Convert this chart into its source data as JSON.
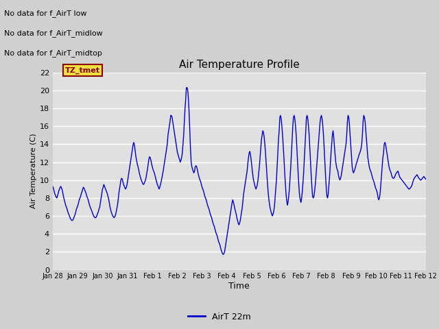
{
  "title": "Air Temperature Profile",
  "xlabel": "Time",
  "ylabel": "Air Temperature (C)",
  "ylim": [
    0,
    22
  ],
  "yticks": [
    0,
    2,
    4,
    6,
    8,
    10,
    12,
    14,
    16,
    18,
    20,
    22
  ],
  "legend_label": "AirT 22m",
  "line_color": "#0000CC",
  "fig_facecolor": "#d8d8d8",
  "plot_facecolor": "#e8e8e8",
  "annotations": [
    "No data for f_AirT low",
    "No data for f_AirT_midlow",
    "No data for f_AirT_midtop"
  ],
  "tz_label": "TZ_tmet",
  "x_tick_labels": [
    "Jan 28",
    "Jan 29",
    "Jan 30",
    "Jan 31",
    "Feb 1",
    "Feb 2",
    "Feb 3",
    "Feb 4",
    "Feb 5",
    "Feb 6",
    "Feb 7",
    "Feb 8",
    "Feb 9",
    "Feb 10",
    "Feb 11",
    "Feb 12"
  ],
  "temperature_data": [
    9.3,
    9.1,
    8.8,
    8.5,
    8.3,
    8.1,
    8.0,
    8.2,
    8.5,
    8.8,
    9.0,
    9.2,
    9.3,
    9.1,
    8.9,
    8.5,
    8.1,
    7.8,
    7.5,
    7.2,
    7.0,
    6.8,
    6.5,
    6.3,
    6.1,
    5.9,
    5.7,
    5.6,
    5.5,
    5.5,
    5.6,
    5.8,
    6.0,
    6.2,
    6.5,
    6.8,
    7.0,
    7.2,
    7.5,
    7.8,
    8.0,
    8.2,
    8.5,
    8.7,
    9.0,
    9.2,
    9.1,
    8.9,
    8.7,
    8.5,
    8.2,
    8.0,
    7.8,
    7.5,
    7.2,
    7.0,
    6.8,
    6.6,
    6.4,
    6.2,
    6.0,
    5.9,
    5.8,
    5.8,
    5.9,
    6.1,
    6.3,
    6.5,
    6.8,
    7.0,
    7.5,
    8.0,
    8.5,
    9.0,
    9.2,
    9.5,
    9.3,
    9.1,
    8.9,
    8.7,
    8.5,
    8.2,
    7.9,
    7.5,
    7.0,
    6.7,
    6.4,
    6.2,
    6.0,
    5.9,
    5.8,
    5.9,
    6.1,
    6.4,
    6.8,
    7.2,
    7.8,
    8.5,
    9.0,
    9.5,
    10.0,
    10.2,
    10.1,
    9.8,
    9.5,
    9.3,
    9.1,
    9.0,
    9.2,
    9.5,
    10.0,
    10.5,
    11.0,
    11.5,
    12.0,
    12.5,
    13.0,
    13.5,
    14.0,
    14.2,
    13.8,
    13.2,
    12.6,
    12.2,
    11.8,
    11.5,
    11.2,
    10.8,
    10.5,
    10.2,
    10.0,
    9.8,
    9.6,
    9.5,
    9.6,
    9.8,
    10.0,
    10.3,
    10.8,
    11.2,
    11.8,
    12.3,
    12.6,
    12.5,
    12.2,
    11.8,
    11.5,
    11.2,
    11.0,
    10.8,
    10.5,
    10.2,
    9.9,
    9.6,
    9.4,
    9.2,
    9.0,
    9.2,
    9.5,
    9.8,
    10.2,
    10.6,
    11.0,
    11.5,
    12.0,
    12.5,
    13.0,
    13.5,
    14.0,
    15.0,
    15.5,
    16.0,
    16.5,
    17.2,
    17.2,
    17.0,
    16.5,
    16.0,
    15.5,
    15.0,
    14.5,
    14.0,
    13.5,
    13.0,
    12.8,
    12.5,
    12.3,
    12.0,
    12.2,
    12.5,
    13.0,
    14.0,
    15.0,
    16.5,
    18.0,
    19.0,
    20.3,
    20.3,
    20.0,
    19.0,
    17.5,
    15.5,
    13.5,
    12.0,
    11.5,
    11.2,
    11.0,
    10.8,
    11.0,
    11.5,
    11.6,
    11.5,
    11.2,
    10.8,
    10.5,
    10.2,
    10.0,
    9.8,
    9.5,
    9.2,
    9.0,
    8.8,
    8.5,
    8.2,
    8.0,
    7.8,
    7.5,
    7.2,
    7.0,
    6.8,
    6.5,
    6.2,
    6.0,
    5.8,
    5.5,
    5.2,
    5.0,
    4.8,
    4.5,
    4.2,
    4.0,
    3.8,
    3.5,
    3.2,
    3.0,
    2.8,
    2.5,
    2.2,
    2.0,
    1.8,
    1.7,
    1.8,
    2.0,
    2.5,
    3.0,
    3.5,
    4.0,
    4.5,
    5.0,
    5.5,
    6.0,
    6.5,
    7.0,
    7.5,
    7.8,
    7.5,
    7.2,
    6.8,
    6.5,
    6.2,
    5.8,
    5.5,
    5.2,
    5.0,
    5.2,
    5.5,
    6.0,
    6.5,
    7.0,
    7.8,
    8.5,
    9.0,
    9.5,
    10.0,
    10.5,
    11.0,
    11.8,
    12.5,
    13.0,
    13.2,
    12.8,
    12.2,
    11.5,
    10.8,
    10.2,
    9.8,
    9.5,
    9.2,
    9.0,
    9.2,
    9.5,
    10.0,
    10.8,
    11.5,
    12.5,
    13.5,
    14.5,
    15.0,
    15.5,
    15.3,
    14.8,
    14.0,
    13.0,
    11.8,
    10.5,
    9.5,
    8.5,
    7.8,
    7.2,
    6.8,
    6.5,
    6.2,
    6.0,
    6.2,
    6.5,
    7.0,
    8.0,
    9.0,
    10.0,
    11.5,
    13.0,
    14.5,
    15.5,
    17.0,
    17.2,
    16.8,
    16.0,
    15.0,
    13.8,
    12.5,
    11.0,
    9.8,
    8.5,
    7.8,
    7.2,
    7.5,
    8.2,
    9.0,
    10.2,
    11.5,
    13.0,
    14.5,
    16.0,
    17.0,
    17.2,
    16.8,
    16.0,
    15.0,
    13.5,
    12.0,
    10.5,
    9.2,
    8.2,
    7.8,
    7.5,
    8.0,
    8.8,
    9.8,
    11.0,
    12.5,
    14.0,
    15.5,
    17.0,
    17.2,
    16.8,
    16.0,
    15.0,
    13.5,
    12.0,
    10.5,
    9.2,
    8.2,
    8.0,
    8.2,
    8.8,
    9.5,
    10.5,
    11.5,
    12.5,
    13.5,
    14.5,
    15.5,
    16.5,
    17.0,
    17.2,
    16.8,
    16.0,
    15.0,
    13.5,
    12.0,
    10.5,
    9.2,
    8.2,
    8.0,
    8.5,
    9.5,
    10.5,
    11.8,
    13.0,
    14.0,
    15.0,
    15.5,
    14.8,
    13.8,
    12.8,
    12.0,
    11.5,
    11.2,
    11.0,
    10.5,
    10.2,
    10.0,
    10.2,
    10.5,
    11.0,
    11.5,
    12.0,
    12.5,
    13.0,
    13.5,
    14.0,
    15.0,
    16.5,
    17.2,
    17.0,
    16.2,
    15.0,
    13.8,
    12.5,
    11.5,
    11.0,
    10.8,
    11.0,
    11.2,
    11.5,
    11.8,
    12.0,
    12.3,
    12.5,
    12.8,
    13.0,
    13.2,
    13.5,
    14.0,
    15.0,
    16.5,
    17.2,
    17.0,
    16.5,
    15.5,
    14.5,
    13.5,
    12.5,
    12.0,
    11.5,
    11.2,
    11.0,
    10.8,
    10.5,
    10.2,
    10.0,
    9.8,
    9.5,
    9.2,
    9.0,
    8.8,
    8.5,
    8.0,
    7.8,
    8.0,
    8.5,
    9.5,
    10.5,
    11.5,
    12.5,
    13.0,
    14.0,
    14.2,
    14.0,
    13.5,
    13.0,
    12.5,
    12.0,
    11.5,
    11.2,
    11.0,
    10.8,
    10.5,
    10.3,
    10.2,
    10.2,
    10.3,
    10.5,
    10.7,
    10.8,
    10.9,
    11.0,
    10.8,
    10.5,
    10.3,
    10.2,
    10.1,
    10.0,
    9.9,
    9.8,
    9.7,
    9.6,
    9.5,
    9.4,
    9.3,
    9.2,
    9.1,
    9.0,
    9.0,
    9.1,
    9.2,
    9.3,
    9.5,
    9.8,
    10.0,
    10.2,
    10.3,
    10.4,
    10.5,
    10.6,
    10.5,
    10.3,
    10.2,
    10.1,
    10.0,
    10.0,
    10.1,
    10.2,
    10.3,
    10.4,
    10.3,
    10.2,
    10.1
  ]
}
